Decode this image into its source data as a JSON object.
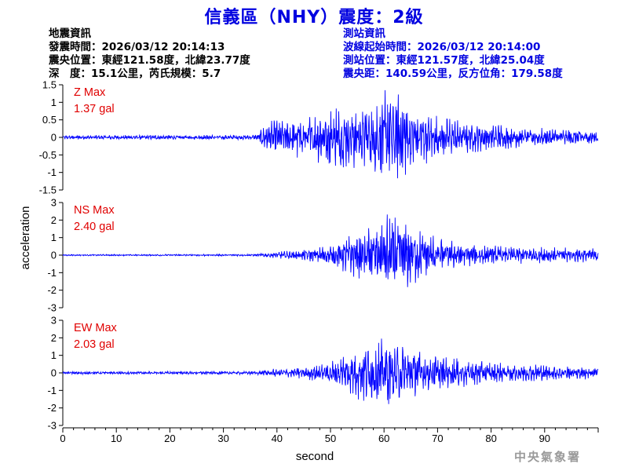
{
  "title": "信義區（NHY）震度：2級",
  "quake_info": {
    "heading": "地震資訊",
    "origin_time": "發震時間：2026/03/12 20:14:13",
    "epicenter": "震央位置：東經121.58度，北緯23.77度",
    "depth_magnitude": "深　度：15.1公里，芮氏規模：5.7"
  },
  "station_info": {
    "heading": "測站資訊",
    "start_time": "波線起始時間：2026/03/12 20:14:00",
    "location": "測站位置：東經121.57度，北緯25.04度",
    "distance": "震央距：140.59公里，反方位角：179.58度"
  },
  "watermark": "中央氣象署",
  "colors": {
    "title": "#0000e0",
    "trace": "#0000ff",
    "max_label": "#e00000",
    "station_info": "#0000e0"
  },
  "chart_data": {
    "type": "line",
    "xlabel": "second",
    "ylabel": "acceleration",
    "xlim": [
      0,
      100
    ],
    "x_ticks": [
      0,
      10,
      20,
      30,
      40,
      50,
      60,
      70,
      80,
      90
    ],
    "panels": [
      {
        "component": "Z",
        "max_label": "Z Max",
        "max_value": "1.37 gal",
        "ylim": [
          -1.5,
          1.5
        ],
        "y_ticks": [
          -1.5,
          -1,
          -0.5,
          0,
          0.5,
          1,
          1.5
        ],
        "y_tick_labels": [
          "-1.5",
          "-1",
          "-0.5",
          "0",
          "0.5",
          "1",
          "1.5"
        ],
        "envelope": [
          [
            0,
            0.06
          ],
          [
            35,
            0.07
          ],
          [
            36.5,
            0.1
          ],
          [
            38,
            0.45
          ],
          [
            45,
            0.6
          ],
          [
            50,
            0.85
          ],
          [
            55,
            0.9
          ],
          [
            58,
            1.15
          ],
          [
            60,
            1.35
          ],
          [
            62,
            1.3
          ],
          [
            65,
            0.95
          ],
          [
            70,
            0.6
          ],
          [
            75,
            0.45
          ],
          [
            85,
            0.3
          ],
          [
            100,
            0.2
          ]
        ]
      },
      {
        "component": "NS",
        "max_label": "NS Max",
        "max_value": "2.40 gal",
        "ylim": [
          -3,
          3
        ],
        "y_ticks": [
          -3,
          -2,
          -1,
          0,
          1,
          2,
          3
        ],
        "y_tick_labels": [
          "-3",
          "-2",
          "-1",
          "0",
          "1",
          "2",
          "3"
        ],
        "envelope": [
          [
            0,
            0.04
          ],
          [
            36,
            0.06
          ],
          [
            38,
            0.15
          ],
          [
            45,
            0.3
          ],
          [
            50,
            0.55
          ],
          [
            54,
            1.2
          ],
          [
            58,
            1.8
          ],
          [
            61,
            2.4
          ],
          [
            64,
            1.9
          ],
          [
            67,
            1.4
          ],
          [
            70,
            1.0
          ],
          [
            75,
            0.65
          ],
          [
            80,
            0.55
          ],
          [
            90,
            0.45
          ],
          [
            100,
            0.4
          ]
        ]
      },
      {
        "component": "EW",
        "max_label": "EW Max",
        "max_value": "2.03 gal",
        "ylim": [
          -3,
          3
        ],
        "y_ticks": [
          -3,
          -2,
          -1,
          0,
          1,
          2,
          3
        ],
        "y_tick_labels": [
          "-3",
          "-2",
          "-1",
          "0",
          "1",
          "2",
          "3"
        ],
        "envelope": [
          [
            0,
            0.08
          ],
          [
            36,
            0.1
          ],
          [
            38,
            0.2
          ],
          [
            45,
            0.35
          ],
          [
            50,
            0.6
          ],
          [
            54,
            1.4
          ],
          [
            57,
            1.7
          ],
          [
            60,
            2.0
          ],
          [
            63,
            1.8
          ],
          [
            66,
            1.3
          ],
          [
            70,
            1.0
          ],
          [
            75,
            0.8
          ],
          [
            80,
            0.6
          ],
          [
            90,
            0.45
          ],
          [
            100,
            0.35
          ]
        ]
      }
    ]
  }
}
